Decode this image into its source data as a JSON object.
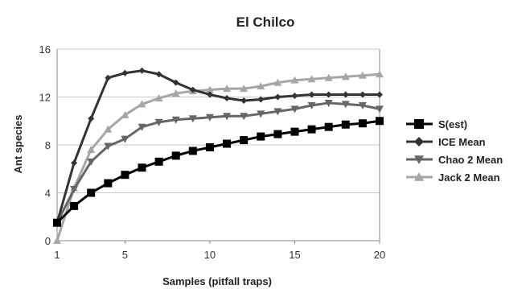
{
  "chart_data": {
    "type": "line",
    "title": "El Chilco",
    "xlabel": "Samples (pitfall traps)",
    "ylabel": "Ant species",
    "xlim": [
      1,
      20
    ],
    "ylim": [
      0,
      16
    ],
    "xticks": [
      1,
      5,
      10,
      15,
      20
    ],
    "yticks": [
      0,
      4,
      8,
      12,
      16
    ],
    "grid": "horizontal",
    "legend_position": "right",
    "x": [
      1,
      2,
      3,
      4,
      5,
      6,
      7,
      8,
      9,
      10,
      11,
      12,
      13,
      14,
      15,
      16,
      17,
      18,
      19,
      20
    ],
    "series": [
      {
        "name": "S(est)",
        "color": "#000000",
        "marker": "square",
        "values": [
          1.5,
          2.9,
          4.0,
          4.8,
          5.5,
          6.1,
          6.6,
          7.1,
          7.5,
          7.8,
          8.1,
          8.4,
          8.7,
          8.9,
          9.1,
          9.3,
          9.5,
          9.7,
          9.8,
          10.0
        ]
      },
      {
        "name": "ICE Mean",
        "color": "#333333",
        "marker": "diamond",
        "values": [
          1.5,
          6.5,
          10.2,
          13.6,
          14.0,
          14.2,
          13.9,
          13.2,
          12.6,
          12.2,
          11.9,
          11.7,
          11.8,
          12.0,
          12.1,
          12.2,
          12.2,
          12.2,
          12.2,
          12.2
        ]
      },
      {
        "name": "Chao 2 Mean",
        "color": "#666666",
        "marker": "triangle-down",
        "values": [
          1.5,
          4.3,
          6.6,
          7.9,
          8.5,
          9.5,
          9.9,
          10.1,
          10.2,
          10.3,
          10.4,
          10.4,
          10.6,
          10.8,
          11.0,
          11.3,
          11.5,
          11.4,
          11.3,
          11.0
        ]
      },
      {
        "name": "Jack 2 Mean",
        "color": "#a6a6a6",
        "marker": "triangle-up",
        "values": [
          0.0,
          4.4,
          7.6,
          9.3,
          10.5,
          11.4,
          11.9,
          12.3,
          12.5,
          12.6,
          12.7,
          12.7,
          12.9,
          13.2,
          13.4,
          13.5,
          13.6,
          13.7,
          13.8,
          13.9
        ]
      }
    ]
  }
}
